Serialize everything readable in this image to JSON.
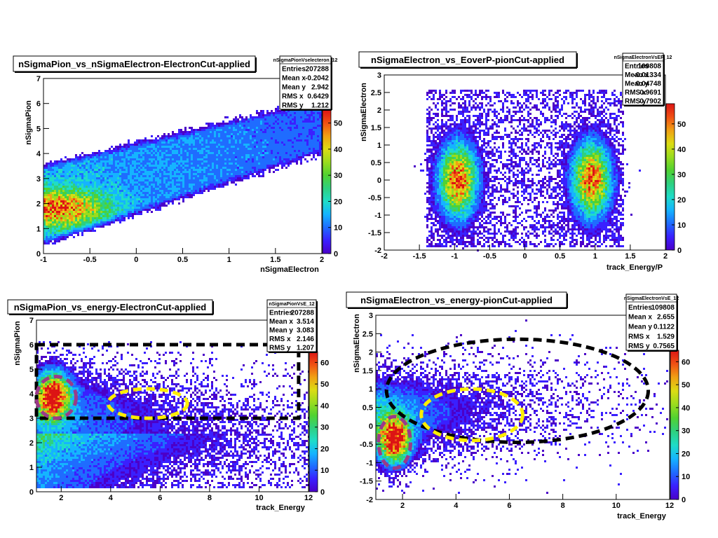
{
  "colors": {
    "palette": [
      "#4b00c8",
      "#3a20ff",
      "#1f6cff",
      "#15b4ff",
      "#1fdcc8",
      "#2ed080",
      "#50d232",
      "#9adc1e",
      "#dcdc14",
      "#f0a014",
      "#f05014",
      "#dc1414"
    ],
    "dashed_black": "#000000",
    "dashed_yellow": "#ffee00",
    "dashed_purple": "#9b3a8a"
  },
  "chart_data": [
    {
      "type": "heatmap",
      "title": "nSigmaPion_vs_nSigmaElectron-ElectronCut-applied",
      "xlabel": "nSigmaElectron",
      "ylabel": "nSigmaPion",
      "xlim": [
        -1,
        2
      ],
      "ylim": [
        0,
        7
      ],
      "xticks": [
        {
          "v": -1,
          "label": "-1"
        },
        {
          "v": -0.5,
          "label": "-0.5"
        },
        {
          "v": 0,
          "label": "0"
        },
        {
          "v": 0.5,
          "label": "0.5"
        },
        {
          "v": 1,
          "label": "1"
        },
        {
          "v": 1.5,
          "label": "1.5"
        },
        {
          "v": 2,
          "label": "2"
        }
      ],
      "yticks": [
        {
          "v": 0,
          "label": "0"
        },
        {
          "v": 1,
          "label": "1"
        },
        {
          "v": 2,
          "label": "2"
        },
        {
          "v": 3,
          "label": "3"
        },
        {
          "v": 4,
          "label": "4"
        },
        {
          "v": 5,
          "label": "5"
        },
        {
          "v": 6,
          "label": "6"
        },
        {
          "v": 7,
          "label": "7"
        }
      ],
      "zlim": [
        0,
        55
      ],
      "zticks": [
        {
          "v": 0,
          "label": "0"
        },
        {
          "v": 10,
          "label": "10"
        },
        {
          "v": 20,
          "label": "20"
        },
        {
          "v": 30,
          "label": "30"
        },
        {
          "v": 40,
          "label": "40"
        },
        {
          "v": 50,
          "label": "50"
        }
      ],
      "stats": {
        "name": "nSigmaPionVselecteron_12",
        "rows": [
          {
            "label": "Entries",
            "value": "207288"
          },
          {
            "label": "Mean x",
            "value": "-0.2042"
          },
          {
            "label": "Mean y",
            "value": "2.942"
          },
          {
            "label": "RMS x",
            "value": "0.6429"
          },
          {
            "label": "RMS y",
            "value": "1.212"
          }
        ]
      },
      "distribution": {
        "kind": "band",
        "slope": 0.8,
        "width": 1.5,
        "peak": [
          -0.85,
          1.8
        ],
        "peak_value": 30
      },
      "annotations": []
    },
    {
      "type": "heatmap",
      "title": "nSigmaElectron_vs_EoverP-pionCut-applied",
      "xlabel": "track_Energy/P",
      "ylabel": "nSigmaElectron",
      "xlim": [
        -2,
        2
      ],
      "ylim": [
        -2,
        3
      ],
      "xticks": [
        {
          "v": -2,
          "label": "-2"
        },
        {
          "v": -1.5,
          "label": "-1.5"
        },
        {
          "v": -1,
          "label": "-1"
        },
        {
          "v": -0.5,
          "label": "-0.5"
        },
        {
          "v": 0,
          "label": "0"
        },
        {
          "v": 0.5,
          "label": "0.5"
        },
        {
          "v": 1,
          "label": "1"
        },
        {
          "v": 1.5,
          "label": "1.5"
        },
        {
          "v": 2,
          "label": "2"
        }
      ],
      "yticks": [
        {
          "v": -2,
          "label": "-2"
        },
        {
          "v": -1.5,
          "label": "-1.5"
        },
        {
          "v": -1,
          "label": "-1"
        },
        {
          "v": -0.5,
          "label": "-0.5"
        },
        {
          "v": 0,
          "label": "0"
        },
        {
          "v": 0.5,
          "label": "0.5"
        },
        {
          "v": 1,
          "label": "1"
        },
        {
          "v": 1.5,
          "label": "1.5"
        },
        {
          "v": 2,
          "label": "2"
        },
        {
          "v": 2.5,
          "label": "2.5"
        },
        {
          "v": 3,
          "label": "3"
        }
      ],
      "zlim": [
        0,
        58
      ],
      "zticks": [
        {
          "v": 0,
          "label": "0"
        },
        {
          "v": 10,
          "label": "10"
        },
        {
          "v": 20,
          "label": "20"
        },
        {
          "v": 30,
          "label": "30"
        },
        {
          "v": 40,
          "label": "40"
        },
        {
          "v": 50,
          "label": "50"
        }
      ],
      "stats": {
        "name": "nSigmaElectronVsEP_12",
        "rows": [
          {
            "label": "Entries",
            "value": "109808"
          },
          {
            "label": "Mean x",
            "value": "-0.01334"
          },
          {
            "label": "Mean y",
            "value": "0.04748"
          },
          {
            "label": "RMS x",
            "value": "0.9691"
          },
          {
            "label": "RMS y",
            "value": "0.7902"
          }
        ]
      },
      "distribution": {
        "kind": "two_blobs",
        "centers": [
          [
            -0.95,
            0.0
          ],
          [
            0.95,
            0.0
          ]
        ],
        "peak_value": 45
      },
      "annotations": []
    },
    {
      "type": "heatmap",
      "title": "nSigmaPion_vs_energy-ElectronCut-applied",
      "xlabel": "track_Energy",
      "ylabel": "nSigmaPion",
      "xlim": [
        1,
        12
      ],
      "ylim": [
        0,
        7
      ],
      "xticks": [
        {
          "v": 2,
          "label": "2"
        },
        {
          "v": 4,
          "label": "4"
        },
        {
          "v": 6,
          "label": "6"
        },
        {
          "v": 8,
          "label": "8"
        },
        {
          "v": 10,
          "label": "10"
        },
        {
          "v": 12,
          "label": "12"
        }
      ],
      "yticks": [
        {
          "v": 0,
          "label": "0"
        },
        {
          "v": 1,
          "label": "1"
        },
        {
          "v": 2,
          "label": "2"
        },
        {
          "v": 3,
          "label": "3"
        },
        {
          "v": 4,
          "label": "4"
        },
        {
          "v": 5,
          "label": "5"
        },
        {
          "v": 6,
          "label": "6"
        },
        {
          "v": 7,
          "label": "7"
        }
      ],
      "zlim": [
        0,
        65
      ],
      "zticks": [
        {
          "v": 0,
          "label": "0"
        },
        {
          "v": 10,
          "label": "10"
        },
        {
          "v": 20,
          "label": "20"
        },
        {
          "v": 30,
          "label": "30"
        },
        {
          "v": 40,
          "label": "40"
        },
        {
          "v": 50,
          "label": "50"
        },
        {
          "v": 60,
          "label": "60"
        }
      ],
      "stats": {
        "name": "nSigmaPionVsE_12",
        "rows": [
          {
            "label": "Entries",
            "value": "207288"
          },
          {
            "label": "Mean x",
            "value": "3.514"
          },
          {
            "label": "Mean y",
            "value": "3.083"
          },
          {
            "label": "RMS x",
            "value": "2.146"
          },
          {
            "label": "RMS y",
            "value": "1.207"
          }
        ]
      },
      "distribution": {
        "kind": "energy_pion",
        "peak": [
          1.7,
          3.9
        ],
        "peak_value": 55
      },
      "annotations": [
        {
          "shape": "rect",
          "x0": 1.0,
          "x1": 11.6,
          "y0": 3.0,
          "y1": 6.0,
          "color": "dashed_black"
        },
        {
          "shape": "ellipse",
          "cx": 5.5,
          "cy": 3.6,
          "rx": 1.6,
          "ry": 0.6,
          "color": "dashed_yellow"
        },
        {
          "shape": "ellipse",
          "cx": 1.8,
          "cy": 3.85,
          "rx": 0.8,
          "ry": 0.85,
          "color": "dashed_purple"
        }
      ]
    },
    {
      "type": "heatmap",
      "title": "nSigmaElectron_vs_energy-pionCut-applied",
      "xlabel": "track_Energy",
      "ylabel": "nSigmaElectron",
      "xlim": [
        1,
        12
      ],
      "ylim": [
        -2,
        3
      ],
      "xticks": [
        {
          "v": 2,
          "label": "2"
        },
        {
          "v": 4,
          "label": "4"
        },
        {
          "v": 6,
          "label": "6"
        },
        {
          "v": 8,
          "label": "8"
        },
        {
          "v": 10,
          "label": "10"
        },
        {
          "v": 12,
          "label": "12"
        }
      ],
      "yticks": [
        {
          "v": -2,
          "label": "-2"
        },
        {
          "v": -1.5,
          "label": "-1.5"
        },
        {
          "v": -1,
          "label": "-1"
        },
        {
          "v": -0.5,
          "label": "-0.5"
        },
        {
          "v": 0,
          "label": "0"
        },
        {
          "v": 0.5,
          "label": "0.5"
        },
        {
          "v": 1,
          "label": "1"
        },
        {
          "v": 1.5,
          "label": "1.5"
        },
        {
          "v": 2,
          "label": "2"
        },
        {
          "v": 2.5,
          "label": "2.5"
        },
        {
          "v": 3,
          "label": "3"
        }
      ],
      "zlim": [
        0,
        65
      ],
      "zticks": [
        {
          "v": 0,
          "label": "0"
        },
        {
          "v": 10,
          "label": "10"
        },
        {
          "v": 20,
          "label": "20"
        },
        {
          "v": 30,
          "label": "30"
        },
        {
          "v": 40,
          "label": "40"
        },
        {
          "v": 50,
          "label": "50"
        },
        {
          "v": 60,
          "label": "60"
        }
      ],
      "stats": {
        "name": "nSigmaElectronVsE_12",
        "rows": [
          {
            "label": "Entries",
            "value": "109808"
          },
          {
            "label": "Mean x",
            "value": "2.655"
          },
          {
            "label": "Mean y",
            "value": "0.1122"
          },
          {
            "label": "RMS x",
            "value": "1.529"
          },
          {
            "label": "RMS y",
            "value": "0.7565"
          }
        ]
      },
      "distribution": {
        "kind": "energy_electron",
        "peak": [
          1.7,
          -0.4
        ],
        "peak_value": 55
      },
      "annotations": [
        {
          "shape": "ellipse",
          "cx": 6.3,
          "cy": 0.95,
          "rx": 4.9,
          "ry": 1.4,
          "color": "dashed_black"
        },
        {
          "shape": "ellipse",
          "cx": 4.6,
          "cy": 0.3,
          "rx": 1.9,
          "ry": 0.7,
          "color": "dashed_yellow"
        },
        {
          "shape": "ellipse",
          "cx": 1.7,
          "cy": -0.45,
          "rx": 0.6,
          "ry": 0.7,
          "color": "dashed_purple"
        }
      ]
    }
  ]
}
